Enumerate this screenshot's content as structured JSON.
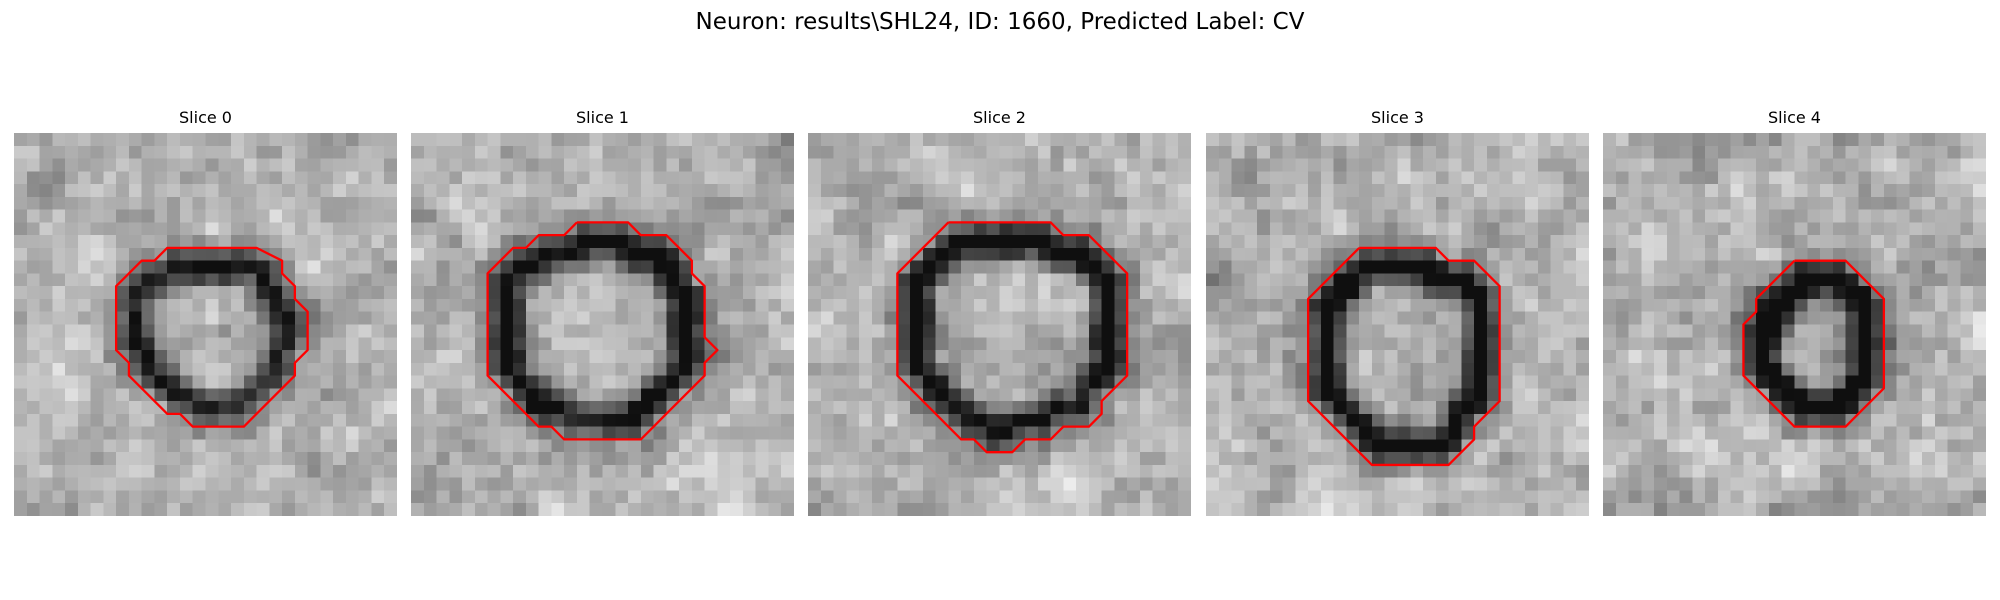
{
  "figure": {
    "title": "Neuron: results\\SHL24, ID: 1660, Predicted Label: CV"
  },
  "panels": [
    {
      "title": "Slice 0",
      "seed": 11,
      "ring_darkness": 0.62,
      "contour": [
        [
          14,
          9
        ],
        [
          19,
          9
        ],
        [
          21,
          10
        ],
        [
          21,
          11
        ],
        [
          22,
          12
        ],
        [
          22,
          13
        ],
        [
          23,
          14
        ],
        [
          23,
          16
        ],
        [
          23,
          17
        ],
        [
          22,
          18
        ],
        [
          22,
          19
        ],
        [
          21,
          20
        ],
        [
          20,
          21
        ],
        [
          19,
          22
        ],
        [
          18,
          23
        ],
        [
          16,
          23
        ],
        [
          14,
          23
        ],
        [
          13,
          22
        ],
        [
          12,
          22
        ],
        [
          11,
          21
        ],
        [
          10,
          20
        ],
        [
          9,
          19
        ],
        [
          9,
          18
        ],
        [
          8,
          17
        ],
        [
          8,
          16
        ],
        [
          8,
          14
        ],
        [
          8,
          13
        ],
        [
          8,
          12
        ],
        [
          9,
          11
        ],
        [
          10,
          10
        ],
        [
          11,
          10
        ],
        [
          12,
          9
        ],
        [
          14,
          9
        ]
      ]
    },
    {
      "title": "Slice 1",
      "seed": 23,
      "ring_darkness": 0.7,
      "contour": [
        [
          13,
          7
        ],
        [
          17,
          7
        ],
        [
          18,
          8
        ],
        [
          20,
          8
        ],
        [
          21,
          9
        ],
        [
          22,
          10
        ],
        [
          22,
          11
        ],
        [
          23,
          12
        ],
        [
          23,
          14
        ],
        [
          23,
          16
        ],
        [
          24,
          17
        ],
        [
          23,
          18
        ],
        [
          23,
          19
        ],
        [
          22,
          20
        ],
        [
          21,
          21
        ],
        [
          20,
          22
        ],
        [
          19,
          23
        ],
        [
          18,
          24
        ],
        [
          15,
          24
        ],
        [
          12,
          24
        ],
        [
          11,
          23
        ],
        [
          10,
          23
        ],
        [
          9,
          22
        ],
        [
          8,
          21
        ],
        [
          7,
          20
        ],
        [
          6,
          19
        ],
        [
          6,
          17
        ],
        [
          6,
          16
        ],
        [
          6,
          14
        ],
        [
          6,
          12
        ],
        [
          6,
          11
        ],
        [
          7,
          10
        ],
        [
          8,
          9
        ],
        [
          9,
          9
        ],
        [
          10,
          8
        ],
        [
          12,
          8
        ],
        [
          13,
          7
        ]
      ]
    },
    {
      "title": "Slice 2",
      "seed": 37,
      "ring_darkness": 0.72,
      "contour": [
        [
          11,
          7
        ],
        [
          19,
          7
        ],
        [
          20,
          8
        ],
        [
          22,
          8
        ],
        [
          23,
          9
        ],
        [
          24,
          10
        ],
        [
          25,
          11
        ],
        [
          25,
          14
        ],
        [
          25,
          17
        ],
        [
          25,
          19
        ],
        [
          24,
          20
        ],
        [
          23,
          21
        ],
        [
          23,
          22
        ],
        [
          22,
          23
        ],
        [
          20,
          23
        ],
        [
          19,
          24
        ],
        [
          17,
          24
        ],
        [
          16,
          25
        ],
        [
          14,
          25
        ],
        [
          13,
          24
        ],
        [
          12,
          24
        ],
        [
          11,
          23
        ],
        [
          10,
          22
        ],
        [
          9,
          21
        ],
        [
          8,
          20
        ],
        [
          7,
          19
        ],
        [
          7,
          17
        ],
        [
          7,
          14
        ],
        [
          7,
          11
        ],
        [
          8,
          10
        ],
        [
          9,
          9
        ],
        [
          10,
          8
        ],
        [
          11,
          7
        ]
      ]
    },
    {
      "title": "Slice 3",
      "seed": 51,
      "ring_darkness": 0.75,
      "contour": [
        [
          12,
          9
        ],
        [
          18,
          9
        ],
        [
          19,
          10
        ],
        [
          21,
          10
        ],
        [
          22,
          11
        ],
        [
          23,
          12
        ],
        [
          23,
          14
        ],
        [
          23,
          17
        ],
        [
          23,
          19
        ],
        [
          23,
          21
        ],
        [
          22,
          22
        ],
        [
          21,
          23
        ],
        [
          21,
          24
        ],
        [
          20,
          25
        ],
        [
          19,
          26
        ],
        [
          13,
          26
        ],
        [
          12,
          25
        ],
        [
          11,
          24
        ],
        [
          10,
          23
        ],
        [
          9,
          22
        ],
        [
          8,
          21
        ],
        [
          8,
          19
        ],
        [
          8,
          16
        ],
        [
          8,
          13
        ],
        [
          9,
          12
        ],
        [
          10,
          11
        ],
        [
          11,
          10
        ],
        [
          12,
          9
        ]
      ]
    },
    {
      "title": "Slice 4",
      "seed": 67,
      "ring_darkness": 0.8,
      "contour": [
        [
          15,
          10
        ],
        [
          19,
          10
        ],
        [
          20,
          11
        ],
        [
          21,
          12
        ],
        [
          22,
          13
        ],
        [
          22,
          16
        ],
        [
          22,
          20
        ],
        [
          21,
          21
        ],
        [
          20,
          22
        ],
        [
          19,
          23
        ],
        [
          16,
          23
        ],
        [
          15,
          23
        ],
        [
          14,
          22
        ],
        [
          13,
          21
        ],
        [
          12,
          20
        ],
        [
          11,
          19
        ],
        [
          11,
          16
        ],
        [
          11,
          15
        ],
        [
          12,
          14
        ],
        [
          12,
          13
        ],
        [
          13,
          12
        ],
        [
          14,
          11
        ],
        [
          15,
          10
        ]
      ]
    }
  ]
}
